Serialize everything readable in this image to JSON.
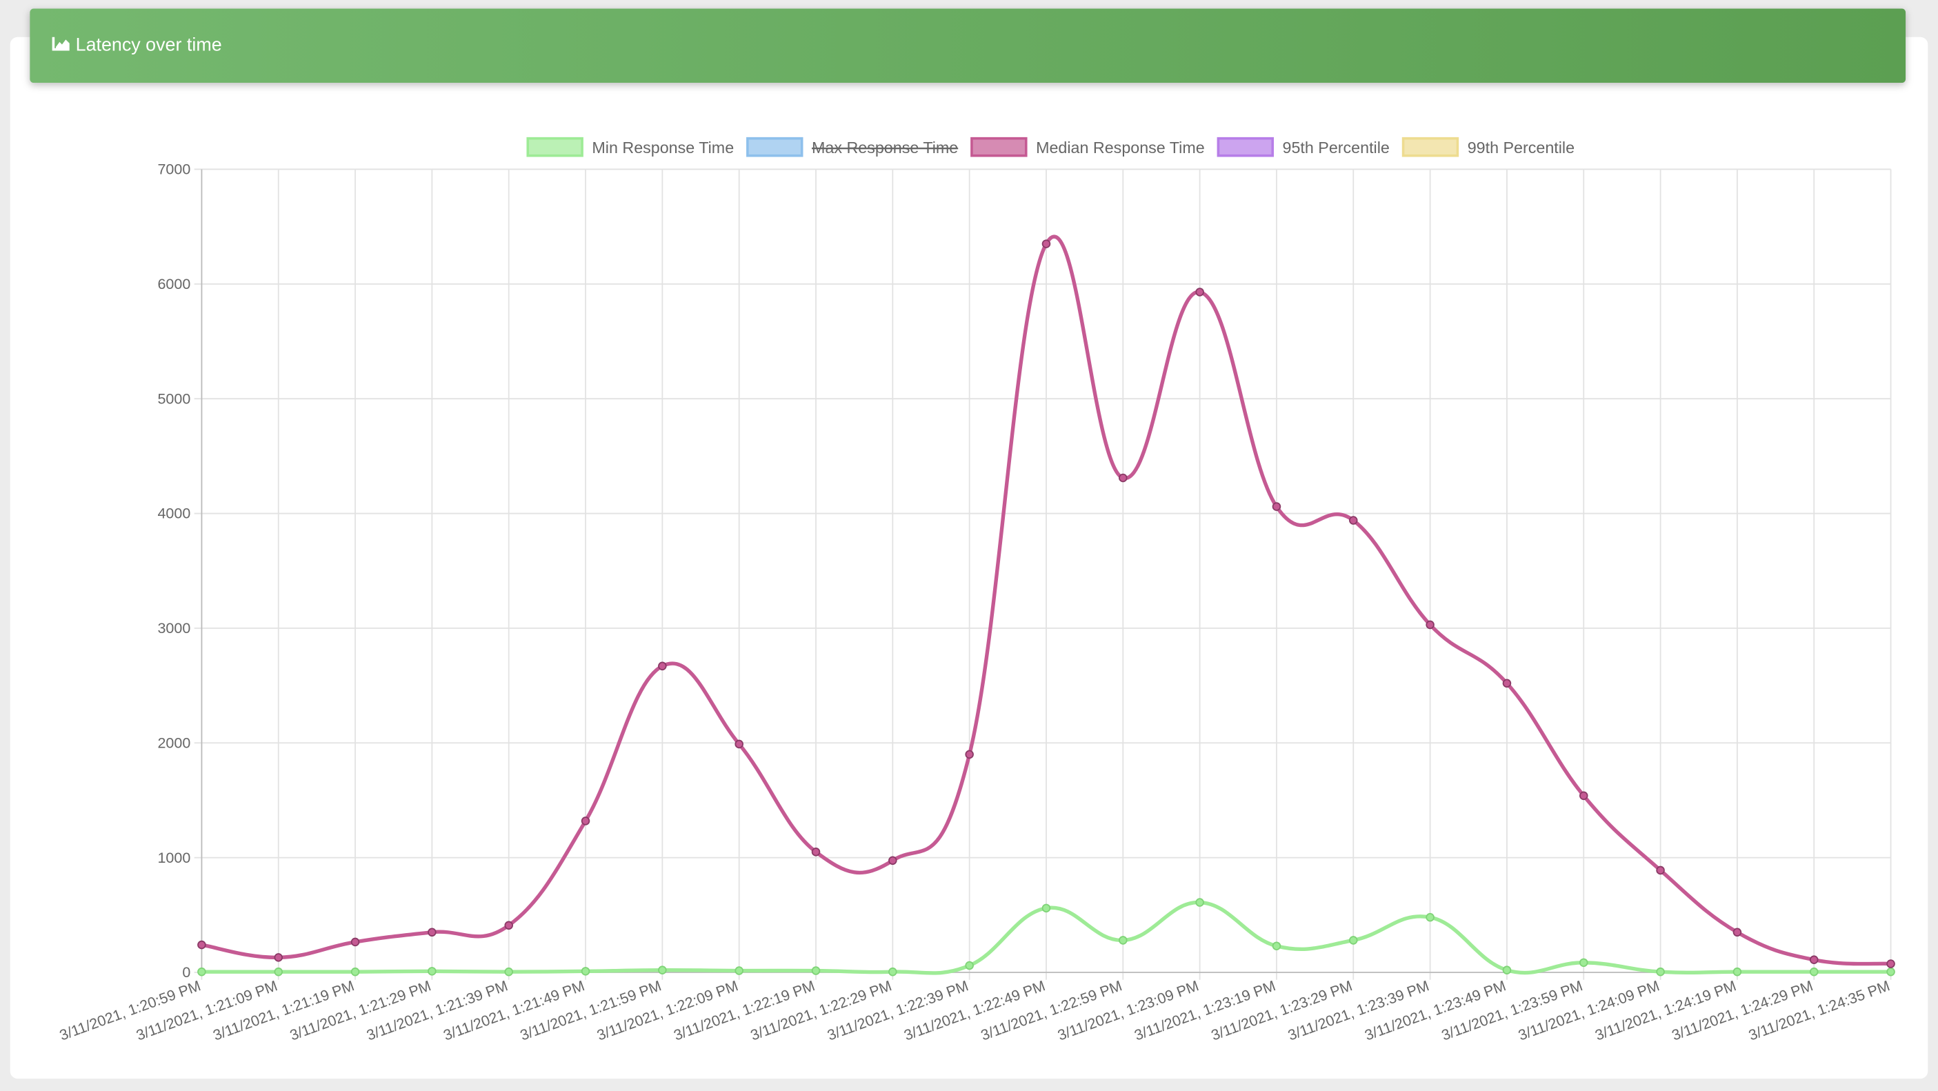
{
  "chart_data": {
    "type": "line",
    "title": "Latency over time",
    "categories": [
      "3/11/2021, 1:20:59 PM",
      "3/11/2021, 1:21:09 PM",
      "3/11/2021, 1:21:19 PM",
      "3/11/2021, 1:21:29 PM",
      "3/11/2021, 1:21:39 PM",
      "3/11/2021, 1:21:49 PM",
      "3/11/2021, 1:21:59 PM",
      "3/11/2021, 1:22:09 PM",
      "3/11/2021, 1:22:19 PM",
      "3/11/2021, 1:22:29 PM",
      "3/11/2021, 1:22:39 PM",
      "3/11/2021, 1:22:49 PM",
      "3/11/2021, 1:22:59 PM",
      "3/11/2021, 1:23:09 PM",
      "3/11/2021, 1:23:19 PM",
      "3/11/2021, 1:23:29 PM",
      "3/11/2021, 1:23:39 PM",
      "3/11/2021, 1:23:49 PM",
      "3/11/2021, 1:23:59 PM",
      "3/11/2021, 1:24:09 PM",
      "3/11/2021, 1:24:19 PM",
      "3/11/2021, 1:24:29 PM",
      "3/11/2021, 1:24:35 PM"
    ],
    "series": [
      {
        "name": "Min Response Time",
        "color": "#9eeb96",
        "values": [
          5,
          5,
          5,
          10,
          5,
          10,
          20,
          15,
          15,
          5,
          60,
          560,
          280,
          610,
          230,
          280,
          480,
          20,
          85,
          5,
          5,
          5,
          5
        ]
      },
      {
        "name": "Max Response Time",
        "color": "#8ec0ec",
        "hidden": true
      },
      {
        "name": "Median Response Time",
        "color": "#c55a93",
        "values": [
          240,
          130,
          265,
          350,
          410,
          1320,
          2670,
          1990,
          1050,
          975,
          1900,
          6350,
          4310,
          5930,
          4060,
          3940,
          3030,
          2520,
          1540,
          890,
          350,
          110,
          75
        ]
      },
      {
        "name": "95th Percentile",
        "color": "#b77ee8"
      },
      {
        "name": "99th Percentile",
        "color": "#eedc90"
      }
    ],
    "ylim": [
      0,
      7000
    ],
    "yticks": [
      0,
      1000,
      2000,
      3000,
      4000,
      5000,
      6000,
      7000
    ],
    "grid": true
  }
}
